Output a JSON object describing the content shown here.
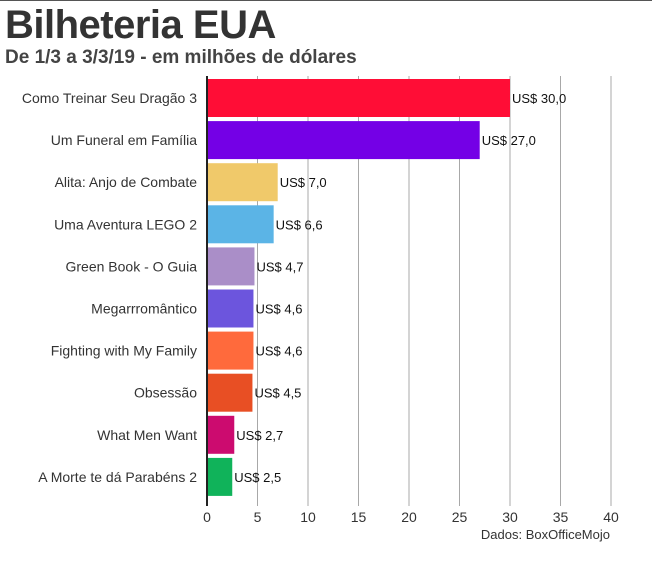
{
  "header": {
    "title": "Bilheteria EUA",
    "subtitle": "De 1/3 a 3/3/19 - em milhões de dólares"
  },
  "footer": {
    "source": "Dados: BoxOfficeMojo"
  },
  "chart_data": {
    "type": "bar",
    "orientation": "horizontal",
    "title": "Bilheteria EUA",
    "subtitle": "De 1/3 a 3/3/19 - em milhões de dólares",
    "xlabel": "",
    "ylabel": "",
    "xlim": [
      0,
      40
    ],
    "ticks": [
      0,
      5,
      10,
      15,
      20,
      25,
      30,
      35,
      40
    ],
    "grid": true,
    "categories": [
      "Como Treinar Seu Dragão 3",
      "Um Funeral em Família",
      "Alita: Anjo de Combate",
      "Uma Aventura LEGO 2",
      "Green Book - O Guia",
      "Megarrromântico",
      "Fighting with My Family",
      "Obsessão",
      "What Men Want",
      "A Morte te dá Parabéns 2"
    ],
    "values": [
      30.0,
      27.0,
      7.0,
      6.6,
      4.7,
      4.6,
      4.6,
      4.5,
      2.7,
      2.5
    ],
    "value_labels": [
      "US$ 30,0",
      "US$ 27,0",
      "US$ 7,0",
      "US$ 6,6",
      "US$ 4,7",
      "US$ 4,6",
      "US$ 4,6",
      "US$ 4,5",
      "US$ 2,7",
      "US$ 2,5"
    ],
    "colors": [
      "#ff0d36",
      "#7400e6",
      "#f0c96a",
      "#5bb4e6",
      "#aa8ec8",
      "#6c55dd",
      "#ff6a3c",
      "#e84f24",
      "#cc0b6f",
      "#10b35a"
    ]
  }
}
